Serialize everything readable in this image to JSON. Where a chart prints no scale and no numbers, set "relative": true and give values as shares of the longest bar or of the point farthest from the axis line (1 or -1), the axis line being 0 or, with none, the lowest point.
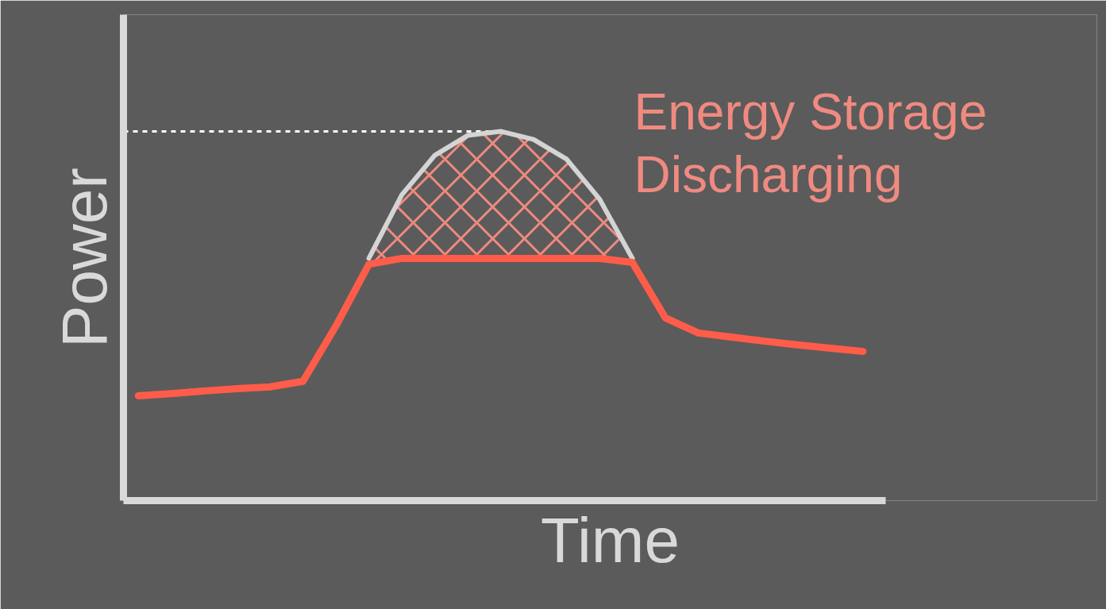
{
  "chart_data": {
    "type": "line",
    "relative": true,
    "xlabel": "Time",
    "ylabel": "Power",
    "categories": [
      null,
      null,
      null,
      null,
      null,
      null,
      null,
      null,
      null,
      null,
      null,
      null,
      null,
      null,
      null,
      null,
      null,
      null,
      null,
      null,
      null,
      null,
      null
    ],
    "series": [
      {
        "color": "#ff5c4a",
        "values": [
          0.284,
          0.29,
          0.297,
          0.303,
          0.308,
          0.323,
          0.473,
          0.64,
          0.656,
          0.656,
          0.656,
          0.656,
          0.656,
          0.656,
          0.656,
          0.645,
          0.495,
          0.454,
          0.443,
          0.432,
          0.422,
          0.413,
          0.404
        ]
      },
      {
        "color": "#d4d4d4",
        "values": [
          null,
          null,
          null,
          null,
          null,
          null,
          null,
          0.656,
          0.828,
          0.935,
          0.989,
          1.0,
          0.978,
          0.925,
          0.817,
          0.656,
          null,
          null,
          null,
          null,
          null,
          null,
          null
        ],
        "lower": [
          null,
          null,
          null,
          null,
          null,
          null,
          null,
          0.64,
          0.656,
          0.656,
          0.656,
          0.656,
          0.656,
          0.656,
          0.656,
          0.645,
          null,
          null,
          null,
          null,
          null,
          null,
          null
        ],
        "upper": [
          null,
          null,
          null,
          null,
          null,
          null,
          null,
          0.656,
          0.828,
          0.935,
          0.989,
          1.0,
          0.978,
          0.925,
          0.817,
          0.656,
          null,
          null,
          null,
          null,
          null,
          null,
          null
        ]
      }
    ],
    "ref_lines": [
      {
        "axis": "y",
        "value": 1.0,
        "color": "#ffffff",
        "line_style": "dashed"
      }
    ],
    "annotations": [
      "Energy Storage\nDischarging"
    ]
  }
}
